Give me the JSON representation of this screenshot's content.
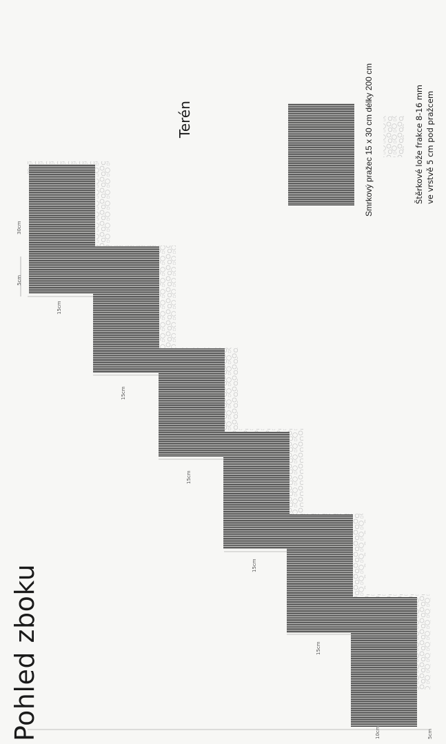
{
  "title": "Pohled zboku",
  "terrain_label": "Terén",
  "legend": {
    "sleeper": "Smrkový pražec 15 x 30 cm délky 200 cm",
    "gravel_line1": "Štěrkové lože frakce 8-16 mm",
    "gravel_line2": "ve vrstvě 5 cm pod pražcem"
  },
  "dims": {
    "top_left": "5cm",
    "top_right": "30cm",
    "riser": "15cm",
    "bottom_left": "10cm",
    "bottom_right": "5cm"
  },
  "colors": {
    "ink": "#1a1a1a",
    "gravel": "#bdbdbd",
    "paper": "#f7f7f5"
  }
}
